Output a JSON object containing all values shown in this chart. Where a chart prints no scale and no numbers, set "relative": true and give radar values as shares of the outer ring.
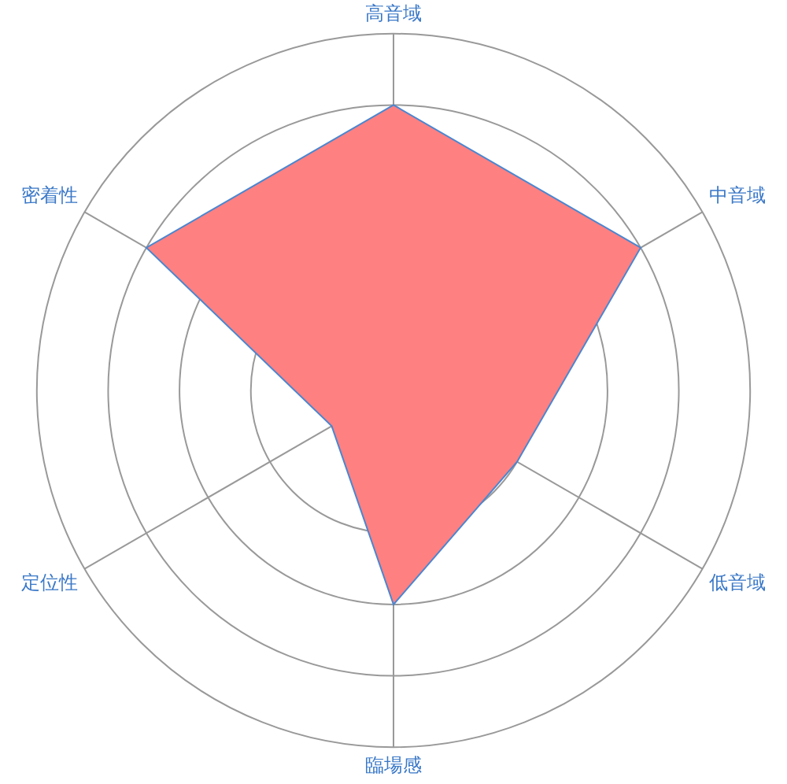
{
  "chart_data": {
    "type": "radar",
    "categories": [
      "高音域",
      "中音域",
      "低音域",
      "臨場感",
      "定位性",
      "密着性"
    ],
    "relative": true,
    "grid": true,
    "legend": false,
    "series": [
      {
        "color": "#ff8080",
        "values": [
          0.8,
          0.8,
          0.4,
          0.6,
          0.2,
          0.8
        ]
      }
    ]
  }
}
